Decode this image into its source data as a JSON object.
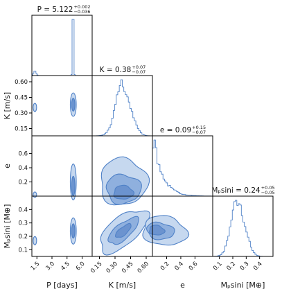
{
  "chart_data": {
    "type": "corner",
    "parameters": [
      {
        "key": "P",
        "label": "P [days]",
        "title_main": "P = 5.122",
        "title_sup": "+0.002",
        "title_sub": "−0.036",
        "range": [
          1.0,
          7.0
        ],
        "ticks": [
          "1.5",
          "3.0",
          "4.5",
          "6.0"
        ],
        "tick_values": [
          1.5,
          3.0,
          4.5,
          6.0
        ],
        "median": 5.122,
        "hist_peaks": [
          {
            "center": 1.3,
            "width": 0.25,
            "height": 0.05
          },
          {
            "center": 5.1,
            "width": 0.1,
            "height": 1.0
          }
        ]
      },
      {
        "key": "K",
        "label": "K [m/s]",
        "title_main": "K = 0.38",
        "title_sup": "+0.07",
        "title_sub": "−0.07",
        "range": [
          0.08,
          0.66
        ],
        "ticks": [
          "0.15",
          "0.30",
          "0.45",
          "0.60"
        ],
        "tick_values": [
          0.15,
          0.3,
          0.45,
          0.6
        ],
        "median": 0.38,
        "sigma": 0.07
      },
      {
        "key": "e",
        "label": "e",
        "title_main": "e = 0.09",
        "title_sup": "+0.15",
        "title_sub": "−0.07",
        "range": [
          0.0,
          0.85
        ],
        "ticks": [
          "0.2",
          "0.4",
          "0.6"
        ],
        "tick_values": [
          0.2,
          0.4,
          0.6
        ],
        "median": 0.09
      },
      {
        "key": "M",
        "label": "Mₚsini [M⊕]",
        "title_main": "Mₚsini = 0.24",
        "title_sup": "+0.05",
        "title_sub": "−0.05",
        "range": [
          0.05,
          0.5
        ],
        "ticks": [
          "0.1",
          "0.2",
          "0.3",
          "0.4"
        ],
        "tick_values": [
          0.1,
          0.2,
          0.3,
          0.4
        ],
        "median": 0.24,
        "sigma": 0.05
      }
    ],
    "y_ticks": {
      "K": [
        "0.15",
        "0.30",
        "0.45",
        "0.60"
      ],
      "e": [
        "0.2",
        "0.4",
        "0.6"
      ],
      "M": [
        "0.1",
        "0.2",
        "0.3",
        "0.4"
      ]
    },
    "colors": {
      "line": "#4f81c7",
      "fill_light": "#c6d8ef",
      "fill_dark": "#6b93cf",
      "axis": "#000000"
    },
    "grid": false,
    "legend": "none"
  }
}
